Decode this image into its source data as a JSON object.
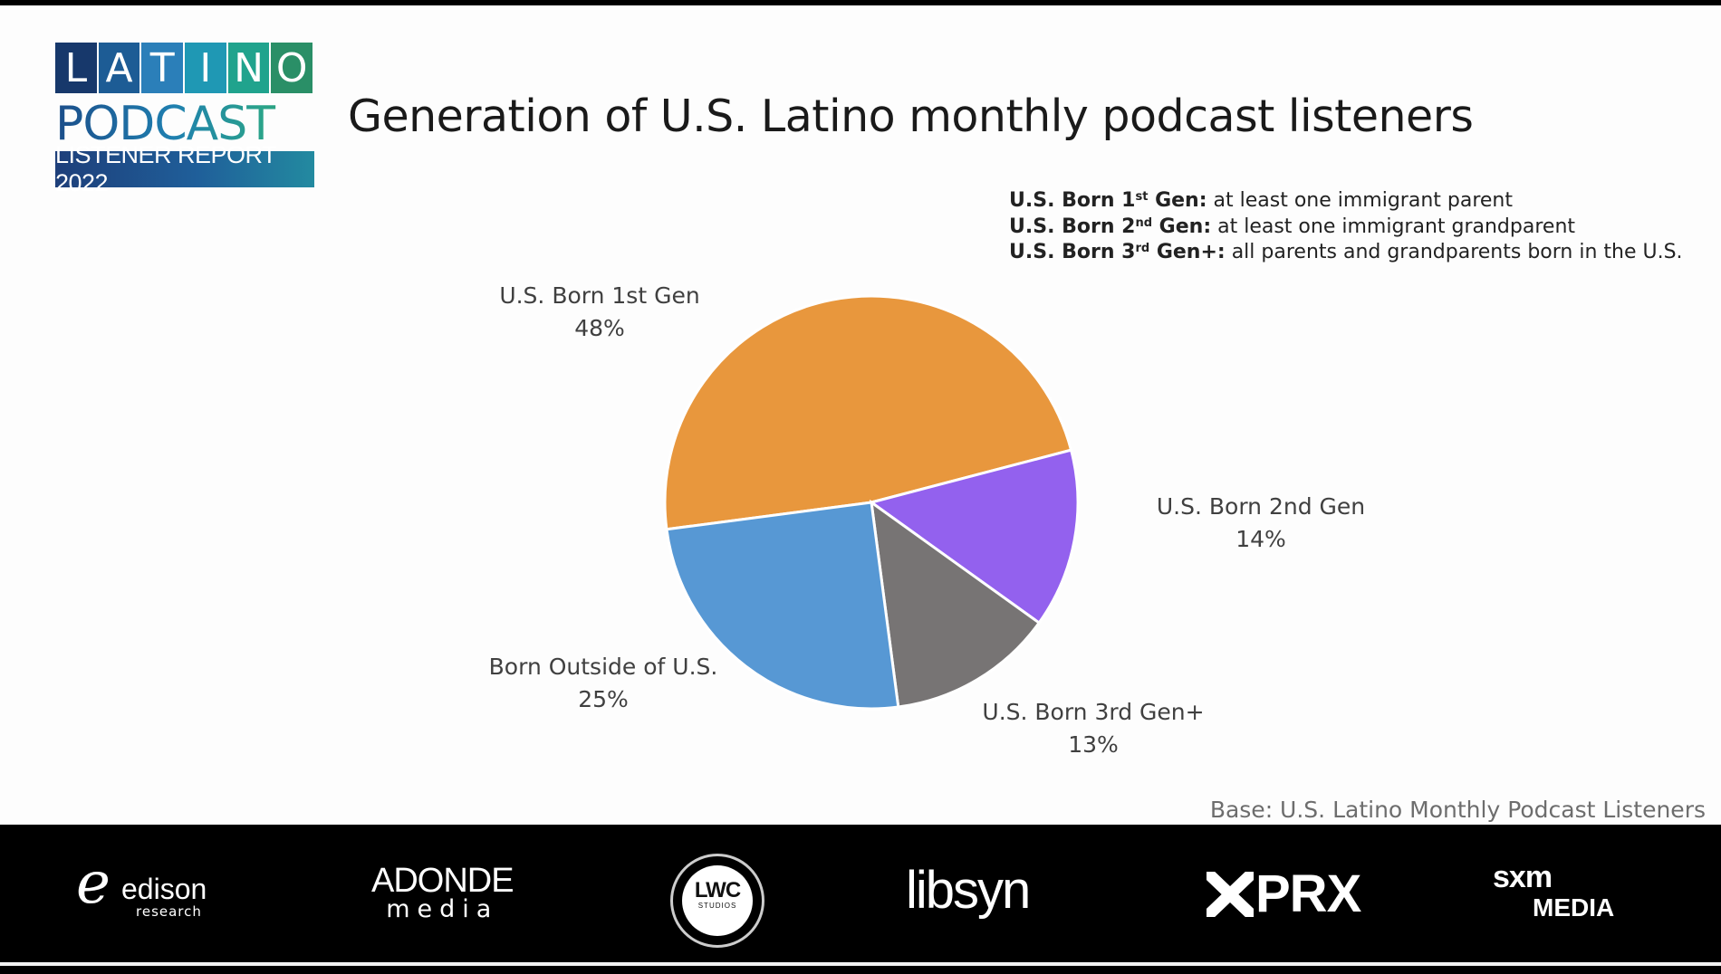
{
  "logo": {
    "latino_letters": [
      "L",
      "A",
      "T",
      "I",
      "N",
      "O"
    ],
    "latino_colors": [
      "#17386b",
      "#1d5c95",
      "#2b7fb9",
      "#1f98b4",
      "#20a38d",
      "#2a8f67"
    ],
    "podcast": "PODCAST",
    "report": "LISTENER REPORT 2022"
  },
  "title": "Generation of U.S. Latino monthly podcast listeners",
  "definitions": [
    {
      "bold_a": "U.S. Born 1",
      "sup": "st",
      "bold_b": " Gen:",
      "text": " at least one immigrant parent"
    },
    {
      "bold_a": "U.S. Born 2",
      "sup": "nd",
      "bold_b": " Gen:",
      "text": " at least one immigrant grandparent"
    },
    {
      "bold_a": "U.S. Born 3",
      "sup": "rd",
      "bold_b": " Gen+:",
      "text": " all parents and grandparents born in the U.S."
    }
  ],
  "chart_data": {
    "type": "pie",
    "title": "Generation of U.S. Latino monthly podcast listeners",
    "slices": [
      {
        "label": "U.S. Born 1st Gen",
        "value": 48,
        "value_label": "48%",
        "color": "#e8973d"
      },
      {
        "label": "U.S. Born 2nd Gen",
        "value": 14,
        "value_label": "14%",
        "color": "#9361ee"
      },
      {
        "label": "U.S. Born 3rd Gen+",
        "value": 13,
        "value_label": "13%",
        "color": "#777474"
      },
      {
        "label": "Born Outside of U.S.",
        "value": 25,
        "value_label": "25%",
        "color": "#5798d4"
      }
    ]
  },
  "base_note": "Base: U.S. Latino Monthly Podcast Listeners",
  "sponsors": {
    "edison_mark": "e",
    "edison_name": "edison",
    "edison_sub": "research",
    "adonde_top": "ADONDE",
    "adonde_bottom": "media",
    "lwc_top": "LWC",
    "lwc_bottom": "STUDIOS",
    "libsyn": "libsyn",
    "prx": "PRX",
    "sxm_top": "sxm",
    "sxm_bottom": "MEDIA"
  }
}
